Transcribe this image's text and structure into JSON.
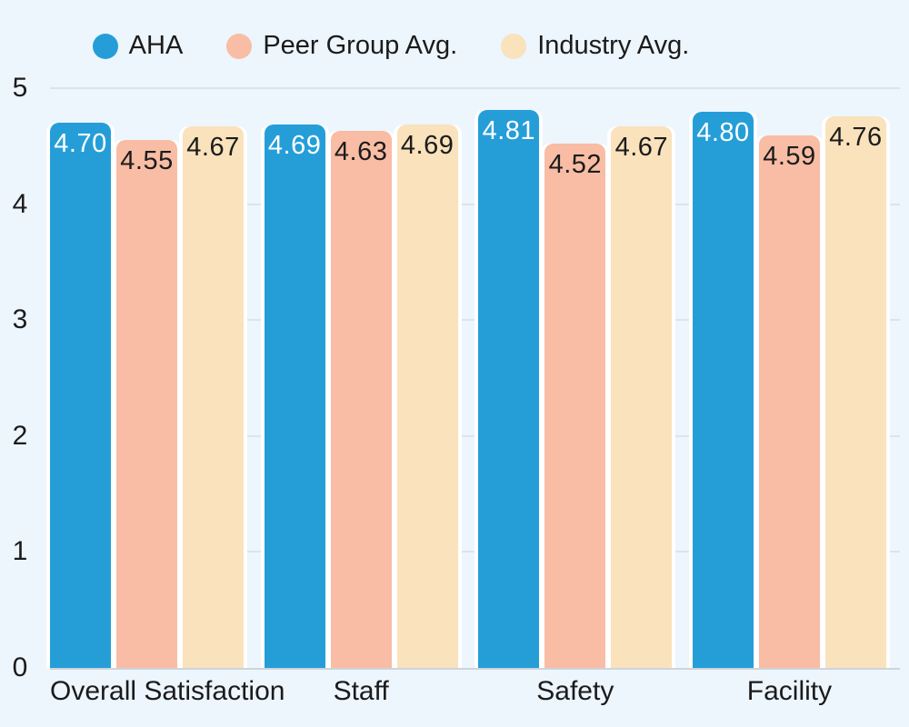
{
  "chart_data": {
    "type": "bar",
    "title": "",
    "categories": [
      "Overall Satisfaction",
      "Staff",
      "Safety",
      "Facility"
    ],
    "series": [
      {
        "name": "AHA",
        "color": "#259ed8",
        "label_color": "#ffffff",
        "values": [
          4.7,
          4.69,
          4.81,
          4.8
        ]
      },
      {
        "name": "Peer Group Avg.",
        "color": "#f8bda4",
        "label_color": "#1c1c1c",
        "values": [
          4.55,
          4.63,
          4.52,
          4.59
        ]
      },
      {
        "name": "Industry Avg.",
        "color": "#f9e2bc",
        "label_color": "#1c1c1c",
        "values": [
          4.67,
          4.69,
          4.67,
          4.76
        ]
      }
    ],
    "xlabel": "",
    "ylabel": "",
    "ylim": [
      0,
      5
    ],
    "yticks": [
      0,
      1,
      2,
      3,
      4,
      5
    ],
    "grid": true,
    "legend_position": "top",
    "value_labels": true,
    "value_label_decimals": 2
  },
  "colors": {
    "background": "#edf5fd",
    "gridline": "#dde3ea",
    "axis_line": "#cdd4db",
    "text": "#1b1b1b"
  }
}
